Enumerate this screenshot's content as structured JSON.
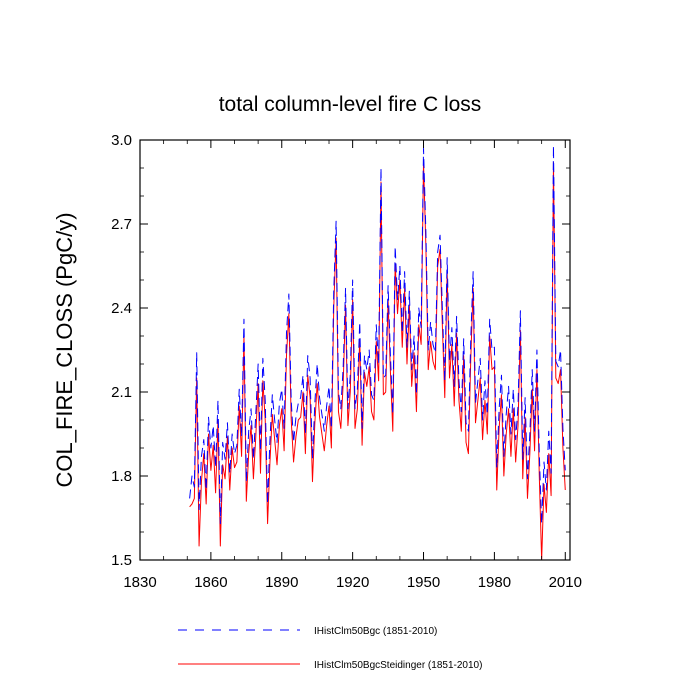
{
  "chart_data": {
    "type": "line",
    "title": "total column-level fire C loss",
    "xlabel": "",
    "ylabel": "COL_FIRE_CLOSS  (PgC/y)",
    "xlim": [
      1830,
      2012
    ],
    "ylim": [
      1.5,
      3.0
    ],
    "xticks": [
      1830,
      1860,
      1890,
      1920,
      1950,
      1980,
      2010
    ],
    "yticks": [
      1.5,
      1.8,
      2.1,
      2.4,
      2.7,
      3.0
    ],
    "ytick_labels": [
      "1.5",
      "1.8",
      "2.1",
      "2.4",
      "2.7",
      "3.0"
    ],
    "grid": false,
    "legend_position": "bottom",
    "x": [
      1851,
      1852,
      1853,
      1854,
      1855,
      1856,
      1857,
      1858,
      1859,
      1860,
      1861,
      1862,
      1863,
      1864,
      1865,
      1866,
      1867,
      1868,
      1869,
      1870,
      1871,
      1872,
      1873,
      1874,
      1875,
      1876,
      1877,
      1878,
      1879,
      1880,
      1881,
      1882,
      1883,
      1884,
      1885,
      1886,
      1887,
      1888,
      1889,
      1890,
      1891,
      1892,
      1893,
      1894,
      1895,
      1896,
      1897,
      1898,
      1899,
      1900,
      1901,
      1902,
      1903,
      1904,
      1905,
      1906,
      1907,
      1908,
      1909,
      1910,
      1911,
      1912,
      1913,
      1914,
      1915,
      1916,
      1917,
      1918,
      1919,
      1920,
      1921,
      1922,
      1923,
      1924,
      1925,
      1926,
      1927,
      1928,
      1929,
      1930,
      1931,
      1932,
      1933,
      1934,
      1935,
      1936,
      1937,
      1938,
      1939,
      1940,
      1941,
      1942,
      1943,
      1944,
      1945,
      1946,
      1947,
      1948,
      1949,
      1950,
      1951,
      1952,
      1953,
      1954,
      1955,
      1956,
      1957,
      1958,
      1959,
      1960,
      1961,
      1962,
      1963,
      1964,
      1965,
      1966,
      1967,
      1968,
      1969,
      1970,
      1971,
      1972,
      1973,
      1974,
      1975,
      1976,
      1977,
      1978,
      1979,
      1980,
      1981,
      1982,
      1983,
      1984,
      1985,
      1986,
      1987,
      1988,
      1989,
      1990,
      1991,
      1992,
      1993,
      1994,
      1995,
      1996,
      1997,
      1998,
      1999,
      2000,
      2001,
      2002,
      2003,
      2004,
      2005,
      2006,
      2007,
      2008,
      2009,
      2010
    ],
    "series": [
      {
        "name": "IHistClm50Bgc (1851-2010)",
        "color": "#0000ff",
        "dash": "dashed",
        "values": [
          1.72,
          1.8,
          1.76,
          2.24,
          1.68,
          1.87,
          1.93,
          1.75,
          2.01,
          1.9,
          1.98,
          1.83,
          2.07,
          1.63,
          1.92,
          1.86,
          1.99,
          1.81,
          1.95,
          1.88,
          1.91,
          2.11,
          1.94,
          2.36,
          1.78,
          1.96,
          2.04,
          1.86,
          2.02,
          2.2,
          1.89,
          2.22,
          2.07,
          1.7,
          1.93,
          2.09,
          2.0,
          1.92,
          2.06,
          2.11,
          1.97,
          2.31,
          2.45,
          2.07,
          1.92,
          2.01,
          2.06,
          2.08,
          2.16,
          1.95,
          2.23,
          2.15,
          1.86,
          2.06,
          2.2,
          2.08,
          2.02,
          1.96,
          2.05,
          2.12,
          1.97,
          2.46,
          2.71,
          2.1,
          2.04,
          2.19,
          2.47,
          2.04,
          2.16,
          2.5,
          2.04,
          2.11,
          2.35,
          1.97,
          2.23,
          2.18,
          2.25,
          2.09,
          2.07,
          2.34,
          2.2,
          2.9,
          2.15,
          2.16,
          2.48,
          2.23,
          2.02,
          2.62,
          2.43,
          2.55,
          2.31,
          2.53,
          2.26,
          2.46,
          2.18,
          2.3,
          2.09,
          2.4,
          2.33,
          2.97,
          2.67,
          2.25,
          2.35,
          2.27,
          2.24,
          2.6,
          2.66,
          2.39,
          2.14,
          2.58,
          2.21,
          2.33,
          2.12,
          2.37,
          2.14,
          2.03,
          2.29,
          1.99,
          1.96,
          2.29,
          2.53,
          2.06,
          2.14,
          2.22,
          2.0,
          2.14,
          2.02,
          2.36,
          2.25,
          2.26,
          1.83,
          2.04,
          2.16,
          1.87,
          2.02,
          2.12,
          1.95,
          2.11,
          1.93,
          2.05,
          2.39,
          1.86,
          2.08,
          1.79,
          1.95,
          2.18,
          1.96,
          2.25,
          1.88,
          1.63,
          1.85,
          1.75,
          1.96,
          1.81,
          2.98,
          2.21,
          2.19,
          2.25,
          1.97,
          1.82
        ]
      },
      {
        "name": "IHistClm50BgcSteidinger (1851-2010)",
        "color": "#ff0000",
        "dash": "solid",
        "values": [
          1.69,
          1.7,
          1.72,
          2.15,
          1.55,
          1.78,
          1.88,
          1.7,
          1.95,
          1.82,
          1.91,
          1.74,
          2.0,
          1.55,
          1.84,
          1.79,
          1.94,
          1.75,
          1.9,
          1.83,
          1.85,
          2.05,
          1.87,
          2.3,
          1.71,
          1.88,
          1.98,
          1.79,
          1.94,
          2.13,
          1.81,
          2.14,
          2.0,
          1.63,
          1.85,
          2.02,
          1.93,
          1.84,
          1.98,
          2.04,
          1.89,
          2.23,
          2.38,
          2.0,
          1.85,
          1.94,
          2.0,
          2.01,
          2.1,
          1.88,
          2.16,
          2.08,
          1.78,
          1.99,
          2.13,
          2.01,
          1.95,
          1.89,
          1.98,
          2.05,
          1.9,
          2.4,
          2.65,
          2.03,
          1.97,
          2.13,
          2.41,
          1.98,
          2.1,
          2.43,
          1.97,
          2.04,
          2.29,
          1.91,
          2.17,
          2.12,
          2.19,
          2.03,
          2.0,
          2.28,
          2.14,
          2.85,
          2.09,
          2.1,
          2.43,
          2.17,
          1.96,
          2.56,
          2.38,
          2.5,
          2.26,
          2.47,
          2.2,
          2.41,
          2.12,
          2.24,
          2.03,
          2.34,
          2.27,
          2.92,
          2.62,
          2.18,
          2.28,
          2.21,
          2.18,
          2.55,
          2.61,
          2.33,
          2.08,
          2.53,
          2.15,
          2.27,
          2.05,
          2.31,
          2.07,
          1.96,
          2.23,
          1.92,
          1.88,
          2.22,
          2.47,
          1.99,
          2.07,
          2.15,
          1.93,
          2.07,
          1.95,
          2.3,
          2.18,
          2.19,
          1.75,
          1.97,
          2.09,
          1.8,
          1.95,
          2.04,
          1.87,
          2.04,
          1.85,
          1.98,
          2.32,
          1.79,
          2.01,
          1.72,
          1.88,
          2.11,
          1.89,
          2.18,
          1.8,
          1.5,
          1.77,
          1.67,
          1.88,
          1.73,
          2.92,
          2.15,
          2.13,
          2.18,
          1.9,
          1.75
        ]
      }
    ]
  }
}
